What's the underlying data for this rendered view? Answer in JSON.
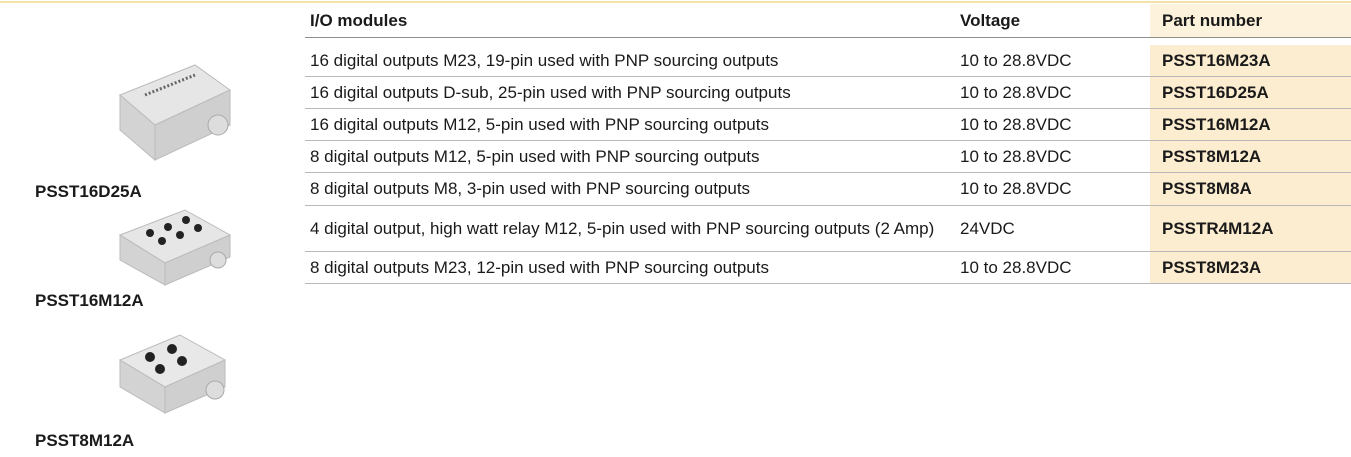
{
  "table": {
    "columns": [
      "I/O modules",
      "Voltage",
      "Part number"
    ],
    "rows": [
      [
        "16 digital outputs M23, 19-pin used with PNP sourcing outputs",
        "10 to 28.8VDC",
        "PSST16M23A"
      ],
      [
        "16 digital outputs D-sub, 25-pin used with PNP sourcing outputs",
        "10 to 28.8VDC",
        "PSST16D25A"
      ],
      [
        "16 digital outputs M12, 5-pin used with PNP sourcing outputs",
        "10 to 28.8VDC",
        "PSST16M12A"
      ],
      [
        "8 digital outputs M12, 5-pin used with PNP sourcing outputs",
        "10 to 28.8VDC",
        "PSST8M12A"
      ],
      [
        "8 digital outputs M8, 3-pin used with PNP sourcing outputs",
        "10 to 28.8VDC",
        "PSST8M8A"
      ],
      [
        "4 digital output, high watt relay M12, 5-pin used with PNP sourcing outputs (2 Amp)",
        "24VDC",
        "PSSTR4M12A"
      ],
      [
        "8 digital outputs M23, 12-pin used with PNP sourcing outputs",
        "10 to 28.8VDC",
        "PSST8M23A"
      ]
    ]
  },
  "products": [
    {
      "label": "PSST16D25A"
    },
    {
      "label": "PSST16M12A"
    },
    {
      "label": "PSST8M12A"
    }
  ]
}
